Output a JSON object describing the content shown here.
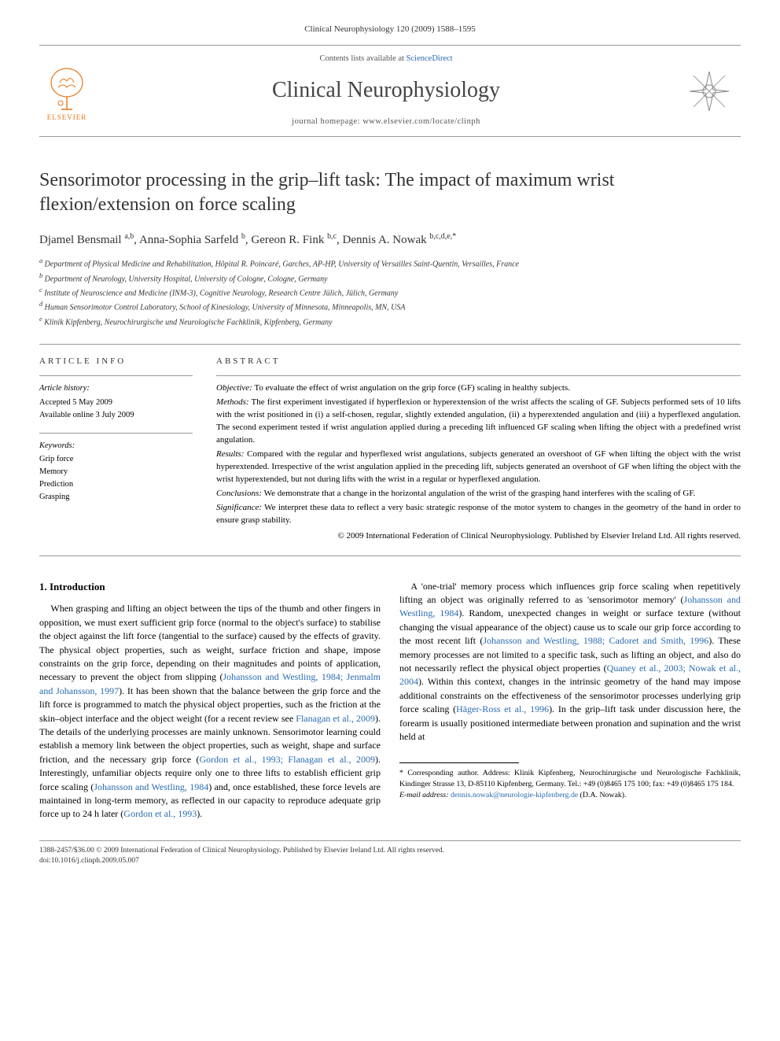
{
  "header": {
    "citation": "Clinical Neurophysiology 120 (2009) 1588–1595",
    "contents_prefix": "Contents lists available at ",
    "contents_link": "ScienceDirect",
    "journal_name": "Clinical Neurophysiology",
    "homepage_prefix": "journal homepage: ",
    "homepage_url": "www.elsevier.com/locate/clinph",
    "publisher_brand": "ELSEVIER"
  },
  "article": {
    "title": "Sensorimotor processing in the grip–lift task: The impact of maximum wrist flexion/extension on force scaling",
    "authors_html": "Djamel Bensmail <sup>a,b</sup>, Anna-Sophia Sarfeld <sup>b</sup>, Gereon R. Fink <sup>b,c</sup>, Dennis A. Nowak <sup>b,c,d,e,*</sup>",
    "affiliations": [
      "a Department of Physical Medicine and Rehabilitation, Hôpital R. Poincaré, Garches, AP-HP, University of Versailles Saint-Quentin, Versailles, France",
      "b Department of Neurology, University Hospital, University of Cologne, Cologne, Germany",
      "c Institute of Neuroscience and Medicine (INM-3), Cognitive Neurology, Research Centre Jülich, Jülich, Germany",
      "d Human Sensorimotor Control Laboratory, School of Kinesiology, University of Minnesota, Minneapolis, MN, USA",
      "e Klinik Kipfenberg, Neurochirurgische und Neurologische Fachklinik, Kipfenberg, Germany"
    ]
  },
  "info": {
    "heading": "ARTICLE INFO",
    "history_label": "Article history:",
    "accepted": "Accepted 5 May 2009",
    "online": "Available online 3 July 2009",
    "keywords_label": "Keywords:",
    "keywords": [
      "Grip force",
      "Memory",
      "Prediction",
      "Grasping"
    ]
  },
  "abstract": {
    "heading": "ABSTRACT",
    "objective_label": "Objective:",
    "objective": "To evaluate the effect of wrist angulation on the grip force (GF) scaling in healthy subjects.",
    "methods_label": "Methods:",
    "methods": "The first experiment investigated if hyperflexion or hyperextension of the wrist affects the scaling of GF. Subjects performed sets of 10 lifts with the wrist positioned in (i) a self-chosen, regular, slightly extended angulation, (ii) a hyperextended angulation and (iii) a hyperflexed angulation. The second experiment tested if wrist angulation applied during a preceding lift influenced GF scaling when lifting the object with a predefined wrist angulation.",
    "results_label": "Results:",
    "results": "Compared with the regular and hyperflexed wrist angulations, subjects generated an overshoot of GF when lifting the object with the wrist hyperextended. Irrespective of the wrist angulation applied in the preceding lift, subjects generated an overshoot of GF when lifting the object with the wrist hyperextended, but not during lifts with the wrist in a regular or hyperflexed angulation.",
    "conclusions_label": "Conclusions:",
    "conclusions": "We demonstrate that a change in the horizontal angulation of the wrist of the grasping hand interferes with the scaling of GF.",
    "significance_label": "Significance:",
    "significance": "We interpret these data to reflect a very basic strategic response of the motor system to changes in the geometry of the hand in order to ensure grasp stability.",
    "copyright": "© 2009 International Federation of Clinical Neurophysiology. Published by Elsevier Ireland Ltd. All rights reserved."
  },
  "body": {
    "section_heading": "1. Introduction",
    "p1a": "When grasping and lifting an object between the tips of the thumb and other fingers in opposition, we must exert sufficient grip force (normal to the object's surface) to stabilise the object against the lift force (tangential to the surface) caused by the effects of gravity. The physical object properties, such as weight, surface friction and shape, impose constraints on the grip force, depending on their magnitudes and points of application, necessary to prevent the object from slipping (",
    "ref1": "Johansson and Westling, 1984; Jenmalm and Johansson, 1997",
    "p1b": "). It has been shown that the balance between the grip force and the lift force is programmed to match the physical object properties, such as the friction at the skin–object interface and the object weight (for a recent review see ",
    "ref2": "Flanagan et al., 2009",
    "p1c": "). The details of the underlying processes are mainly unknown. Sensorimotor learning could establish a memory link between the object properties, such as weight, shape and surface friction, and the necessary grip force (",
    "ref3": "Gordon et al., 1993; Flanagan et al., 2009",
    "p1d": "). Interestingly, unfamiliar objects require only one to three lifts to establish efficient grip force scaling (",
    "ref4": "Johansson and Westling, 1984",
    "p1e": ") and, once established, these force levels are maintained in long-term memory, as reflected in our capacity to reproduce adequate grip force up to 24 h later (",
    "ref5": "Gordon et al., 1993",
    "p1f": ").",
    "p2a": "A 'one-trial' memory process which influences grip force scaling when repetitively lifting an object was originally referred to as 'sensorimotor memory' (",
    "ref6": "Johansson and Westling, 1984",
    "p2b": "). Random, unexpected changes in weight or surface texture (without changing the visual appearance of the object) cause us to scale our grip force according to the most recent lift (",
    "ref7": "Johansson and Westling, 1988; Cadoret and Smith, 1996",
    "p2c": "). These memory processes are not limited to a specific task, such as lifting an object, and also do not necessarily reflect the physical object properties (",
    "ref8": "Quaney et al., 2003; Nowak et al., 2004",
    "p2d": "). Within this context, changes in the intrinsic geometry of the hand may impose additional constraints on the effectiveness of the sensorimotor processes underlying grip force scaling (",
    "ref9": "Häger-Ross et al., 1996",
    "p2e": "). In the grip–lift task under discussion here, the forearm is usually positioned intermediate between pronation and supination and the wrist held at"
  },
  "footnotes": {
    "corr_label": "* Corresponding author.",
    "corr_text": " Address: Klinik Kipfenberg, Neurochirurgische und Neurologische Fachklinik, Kindinger Strasse 13, D-85110 Kipfenberg, Germany. Tel.: +49 (0)8465 175 100; fax: +49 (0)8465 175 184.",
    "email_label": "E-mail address:",
    "email": "dennis.nowak@neurologie-kipfenberg.de",
    "email_who": " (D.A. Nowak)."
  },
  "footer": {
    "line1": "1388-2457/$36.00 © 2009 International Federation of Clinical Neurophysiology. Published by Elsevier Ireland Ltd. All rights reserved.",
    "line2": "doi:10.1016/j.clinph.2009.05.007"
  },
  "colors": {
    "link": "#2a6bb0",
    "brand_orange": "#e67817",
    "rule": "#999999",
    "text": "#000000"
  }
}
